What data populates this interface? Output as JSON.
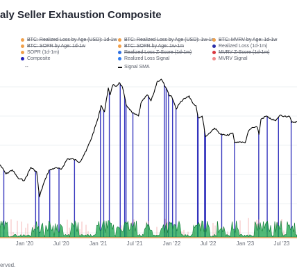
{
  "page": {
    "title": "aly Seller Exhaustion Composite",
    "footer": "erved."
  },
  "legend": [
    {
      "label": "BTC: Realized Loss by Age (USD): 1d-1w",
      "color": "#f0a04b",
      "col": 0,
      "row": 0,
      "strike": true
    },
    {
      "label": "BTC: Realized Loss by Age (USD): 1w-1m",
      "color": "#f0a04b",
      "col": 1,
      "row": 0,
      "strike": true
    },
    {
      "label": "BTC: MVRV by Age: 1d-1w",
      "color": "#f0a04b",
      "col": 2,
      "row": 0,
      "strike": true
    },
    {
      "label": "BTC: SOPR by Age: 1d-1w",
      "color": "#f0a04b",
      "col": 0,
      "row": 1,
      "strike": true
    },
    {
      "label": "BTC: SOPR by Age: 1w-1m",
      "color": "#f0a04b",
      "col": 1,
      "row": 1,
      "strike": true
    },
    {
      "label": "Realized Loss (1d-1m)",
      "color": "#2b2fa8",
      "col": 2,
      "row": 1,
      "strike": false
    },
    {
      "label": "SOPR (1d-1m)",
      "color": "#f0a04b",
      "col": 0,
      "row": 2,
      "strike": false
    },
    {
      "label": "Realized Loss Z-Score (1d-1m)",
      "color": "#2f6fe0",
      "col": 1,
      "row": 2,
      "strike": true
    },
    {
      "label": "MVRV Z-Score (1d-1m)",
      "color": "#d9363e",
      "col": 2,
      "row": 2,
      "strike": true
    },
    {
      "label": "Composite",
      "color": "#2222b8",
      "col": 0,
      "row": 3,
      "strike": false
    },
    {
      "label": "Realized Loss Signal",
      "color": "#2f7df0",
      "col": 1,
      "row": 3,
      "strike": false
    },
    {
      "label": "MVRV Signal",
      "color": "#f08a8a",
      "col": 2,
      "row": 3,
      "strike": false
    },
    {
      "label": "Signal SMA",
      "color": "#111111",
      "col": 1,
      "row": 4,
      "strike": false,
      "line": true
    },
    {
      "label": "--",
      "color": "#444444",
      "col": 0,
      "row": 4,
      "strike": false,
      "text": true
    }
  ],
  "chart_data": {
    "type": "line",
    "title": "aly Seller Exhaustion Composite",
    "x_axis_type": "date",
    "x_ticks": [
      "Jan '20",
      "Jul '20",
      "Jan '21",
      "Jul '21",
      "Jan '22",
      "Jul '22",
      "Jan '23",
      "Jul '23"
    ],
    "x_tick_dates": [
      "2020-01-01",
      "2020-07-01",
      "2021-01-01",
      "2021-07-01",
      "2022-01-01",
      "2022-07-01",
      "2023-01-01",
      "2023-07-01"
    ],
    "x_range": [
      "2019-09-01",
      "2023-09-15"
    ],
    "y_scale": "log",
    "y_ticks_shown": false,
    "grid": "horizontal",
    "colors": {
      "price": "#000000",
      "composite": "#2222b8",
      "signal": "#2f7df0",
      "mvrv": "#f08a8a",
      "fill": "#16a34a",
      "base": "#e89a46"
    },
    "series": [
      {
        "name": "Price",
        "type": "line",
        "points": [
          [
            "2019-09-01",
            10200
          ],
          [
            "2019-10-01",
            8300
          ],
          [
            "2019-11-01",
            9100
          ],
          [
            "2019-12-01",
            7500
          ],
          [
            "2020-01-01",
            7200
          ],
          [
            "2020-02-01",
            9600
          ],
          [
            "2020-03-01",
            8700
          ],
          [
            "2020-03-15",
            5000
          ],
          [
            "2020-04-01",
            6400
          ],
          [
            "2020-05-01",
            9000
          ],
          [
            "2020-06-01",
            9500
          ],
          [
            "2020-07-01",
            9200
          ],
          [
            "2020-08-01",
            11600
          ],
          [
            "2020-09-01",
            11500
          ],
          [
            "2020-10-01",
            10800
          ],
          [
            "2020-11-01",
            13700
          ],
          [
            "2020-12-01",
            19000
          ],
          [
            "2021-01-01",
            29000
          ],
          [
            "2021-01-15",
            38000
          ],
          [
            "2021-02-01",
            33000
          ],
          [
            "2021-02-20",
            56000
          ],
          [
            "2021-03-01",
            48000
          ],
          [
            "2021-03-15",
            60000
          ],
          [
            "2021-04-01",
            58000
          ],
          [
            "2021-04-15",
            63000
          ],
          [
            "2021-05-01",
            57000
          ],
          [
            "2021-05-20",
            38000
          ],
          [
            "2021-06-01",
            36000
          ],
          [
            "2021-06-20",
            32000
          ],
          [
            "2021-07-20",
            30000
          ],
          [
            "2021-08-01",
            40000
          ],
          [
            "2021-09-01",
            48000
          ],
          [
            "2021-09-20",
            42000
          ],
          [
            "2021-10-01",
            48000
          ],
          [
            "2021-10-20",
            64000
          ],
          [
            "2021-11-10",
            68000
          ],
          [
            "2021-12-01",
            57000
          ],
          [
            "2021-12-20",
            47000
          ],
          [
            "2022-01-01",
            46000
          ],
          [
            "2022-01-24",
            35000
          ],
          [
            "2022-02-01",
            38000
          ],
          [
            "2022-03-01",
            44000
          ],
          [
            "2022-03-28",
            47000
          ],
          [
            "2022-04-15",
            40000
          ],
          [
            "2022-05-01",
            38000
          ],
          [
            "2022-05-12",
            29000
          ],
          [
            "2022-06-01",
            30000
          ],
          [
            "2022-06-18",
            19000
          ],
          [
            "2022-07-01",
            20000
          ],
          [
            "2022-08-01",
            23000
          ],
          [
            "2022-09-01",
            20000
          ],
          [
            "2022-10-01",
            19500
          ],
          [
            "2022-11-01",
            20500
          ],
          [
            "2022-11-10",
            16500
          ],
          [
            "2022-12-01",
            17000
          ],
          [
            "2022-12-31",
            16500
          ],
          [
            "2023-01-15",
            21000
          ],
          [
            "2023-02-01",
            23000
          ],
          [
            "2023-03-01",
            23500
          ],
          [
            "2023-03-10",
            20000
          ],
          [
            "2023-03-20",
            28000
          ],
          [
            "2023-04-15",
            30000
          ],
          [
            "2023-05-01",
            28500
          ],
          [
            "2023-06-01",
            27000
          ],
          [
            "2023-06-22",
            30500
          ],
          [
            "2023-07-15",
            30000
          ],
          [
            "2023-08-10",
            29500
          ],
          [
            "2023-08-20",
            26000
          ],
          [
            "2023-09-15",
            26500
          ]
        ]
      },
      {
        "name": "Composite",
        "type": "signal",
        "dates": [
          "2019-09-20",
          "2020-02-25",
          "2020-03-12",
          "2020-05-05",
          "2020-06-20",
          "2020-09-05",
          "2021-01-12",
          "2021-01-28",
          "2021-02-25",
          "2021-04-20",
          "2021-05-12",
          "2021-05-19",
          "2021-06-22",
          "2021-09-07",
          "2021-11-25",
          "2021-12-04",
          "2021-12-16",
          "2022-01-05",
          "2022-01-22",
          "2022-05-09",
          "2022-05-12",
          "2022-06-13",
          "2022-06-18",
          "2022-09-06",
          "2022-11-09",
          "2023-03-09",
          "2023-04-20",
          "2023-06-15",
          "2023-08-17"
        ]
      }
    ]
  }
}
